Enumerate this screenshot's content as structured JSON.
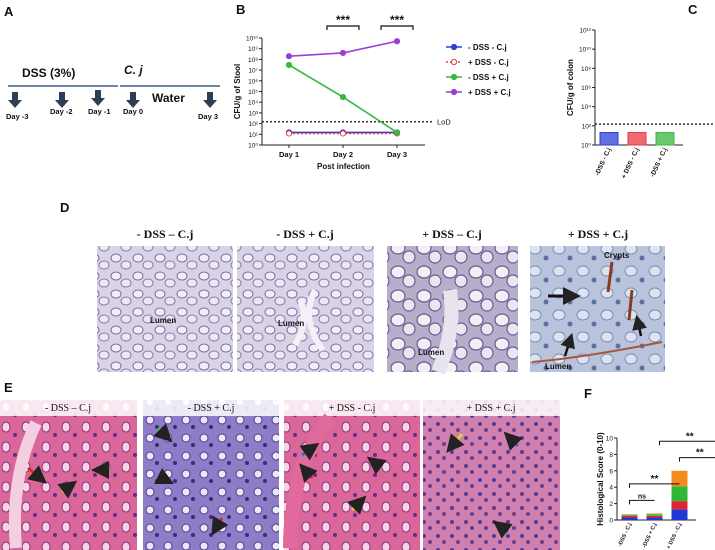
{
  "panel_labels": [
    "A",
    "B",
    "C",
    "D",
    "E",
    "F"
  ],
  "timeline": {
    "treatment": "DSS (3%)",
    "infection": "C. j",
    "water": "Water",
    "days": [
      "Day -3",
      "Day -2",
      "Day -1",
      "Day 0",
      "Day 3"
    ]
  },
  "histology_d": {
    "titles": [
      "- DSS – C.j",
      "- DSS + C.j",
      "+ DSS – C.j",
      "+ DSS + C.j"
    ],
    "annotations": [
      "Lumen",
      "Lumen",
      "Lumen",
      "Crypts",
      "Lumen"
    ]
  },
  "histology_e": {
    "titles": [
      "- DSS – C.j",
      "- DSS + C.j",
      "+ DSS - C.j",
      "+ DSS + C.j"
    ]
  },
  "chart_data": [
    {
      "type": "line",
      "y_label": "CFU/g of Stool",
      "x_label": "Post infection",
      "categories": [
        "Day 1",
        "Day 2",
        "Day 3"
      ],
      "log_scale": true,
      "ylim": [
        1,
        10000000000
      ],
      "yticks": [
        {
          "value": 1,
          "label": "10⁰"
        },
        {
          "value": 10,
          "label": "10¹"
        },
        {
          "value": 100,
          "label": "10²"
        },
        {
          "value": 1000,
          "label": "10³"
        },
        {
          "value": 10000,
          "label": "10⁴"
        },
        {
          "value": 100000,
          "label": "10⁵"
        },
        {
          "value": 1000000,
          "label": "10⁶"
        },
        {
          "value": 10000000,
          "label": "10⁷"
        },
        {
          "value": 100000000,
          "label": "10⁸"
        },
        {
          "value": 1000000000,
          "label": "10⁹"
        },
        {
          "value": 10000000000,
          "label": "10¹⁰"
        }
      ],
      "series": [
        {
          "name": "- DSS - C.j",
          "color": "#2b3fd8",
          "line_style": "solid",
          "values": [
            15,
            15,
            15
          ]
        },
        {
          "name": "+ DSS - C.j",
          "color": "#e8393f",
          "line_style": "dotted",
          "values": [
            12,
            12,
            12
          ]
        },
        {
          "name": "- DSS + C.j",
          "color": "#35b83c",
          "line_style": "solid",
          "values": [
            30000000,
            30000,
            15
          ]
        },
        {
          "name": "+ DSS + C.j",
          "color": "#9a3fd6",
          "line_style": "solid",
          "values": [
            200000000,
            400000000,
            5000000000
          ]
        }
      ],
      "reference_line": {
        "value": 150,
        "label": "LoD"
      },
      "annotations": [
        "***",
        "***"
      ],
      "legend": "right"
    },
    {
      "type": "bar",
      "y_label": "CFU/g of colon",
      "categories": [
        "-DSS - C.j",
        "+ DSS - C.j",
        "-DSS + C.j"
      ],
      "log_scale": true,
      "ylim": [
        1,
        1000000000000
      ],
      "yticks": [
        {
          "value": 1,
          "label": "10⁰"
        },
        {
          "value": 100,
          "label": "10²"
        },
        {
          "value": 10000,
          "label": "10⁴"
        },
        {
          "value": 1000000,
          "label": "10⁶"
        },
        {
          "value": 100000000,
          "label": "10⁸"
        },
        {
          "value": 10000000000,
          "label": "10¹⁰"
        },
        {
          "value": 1000000000000,
          "label": "10¹²"
        }
      ],
      "values": [
        20,
        20,
        20
      ],
      "colors": [
        "#2b3fd8",
        "#e8393f",
        "#35b83c"
      ],
      "reference_line": {
        "value": 150
      }
    },
    {
      "type": "stacked_bar",
      "y_label": "Histological Score (0-10)",
      "categories": [
        "-DSS - C.j",
        "-DSS + C.j",
        "+ DSS - C.j"
      ],
      "ylim": [
        0,
        10
      ],
      "yticks": [
        0,
        2,
        4,
        6,
        8,
        10
      ],
      "series": [
        {
          "color": "#2039d6",
          "values": [
            0.3,
            0.3,
            1.3
          ]
        },
        {
          "color": "#e3262e",
          "values": [
            0.2,
            0.2,
            1.0
          ]
        },
        {
          "color": "#2db83a",
          "values": [
            0.1,
            0.2,
            1.8
          ]
        },
        {
          "color": "#f28a1f",
          "values": [
            0.1,
            0.1,
            1.9
          ]
        }
      ],
      "annotations": [
        "ns",
        "**",
        "**",
        "**"
      ]
    }
  ]
}
